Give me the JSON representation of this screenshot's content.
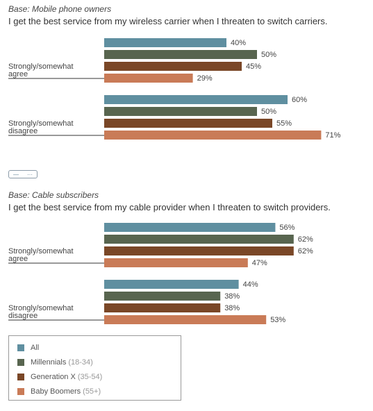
{
  "colors": {
    "All": "#5f8fa0",
    "Millennials": "#58654f",
    "GenX": "#7a4727",
    "Boomers": "#c97b57"
  },
  "chart_data": [
    {
      "type": "bar",
      "orientation": "horizontal",
      "base": "Base: Mobile phone owners",
      "title": "I get the best service from my wireless carrier when I threaten to switch carriers.",
      "categories": [
        "Strongly/somewhat agree",
        "Strongly/somewhat disagree"
      ],
      "series": [
        {
          "name": "All",
          "values": [
            40,
            60
          ]
        },
        {
          "name": "Millennials (18-34)",
          "values": [
            50,
            50
          ]
        },
        {
          "name": "Generation X (35-54)",
          "values": [
            45,
            55
          ]
        },
        {
          "name": "Baby Boomers (55+)",
          "values": [
            29,
            71
          ]
        }
      ],
      "value_suffix": "%",
      "xlim": [
        0,
        100
      ],
      "grid": false
    },
    {
      "type": "bar",
      "orientation": "horizontal",
      "base": "Base: Cable subscribers",
      "title": "I get the best service from my cable provider when I threaten to switch providers.",
      "categories": [
        "Strongly/somewhat agree",
        "Strongly/somewhat disagree"
      ],
      "series": [
        {
          "name": "All",
          "values": [
            56,
            44
          ]
        },
        {
          "name": "Millennials (18-34)",
          "values": [
            62,
            38
          ]
        },
        {
          "name": "Generation X (35-54)",
          "values": [
            62,
            38
          ]
        },
        {
          "name": "Baby Boomers (55+)",
          "values": [
            47,
            53
          ]
        }
      ],
      "value_suffix": "%",
      "xlim": [
        0,
        100
      ],
      "grid": false
    }
  ],
  "category_lines": [
    [
      "Strongly/somewhat",
      "agree"
    ],
    [
      "Strongly/somewhat",
      "disagree"
    ]
  ],
  "legend": {
    "placement": "bottom-left",
    "items": [
      {
        "label": "All",
        "paren": ""
      },
      {
        "label": "Millennials",
        "paren": "(18-34)"
      },
      {
        "label": "Generation X",
        "paren": "(35-54)"
      },
      {
        "label": "Baby Boomers",
        "paren": "(55+)"
      }
    ]
  },
  "control": {
    "icon_left": "minus-icon",
    "icon_right": "more-icon"
  }
}
